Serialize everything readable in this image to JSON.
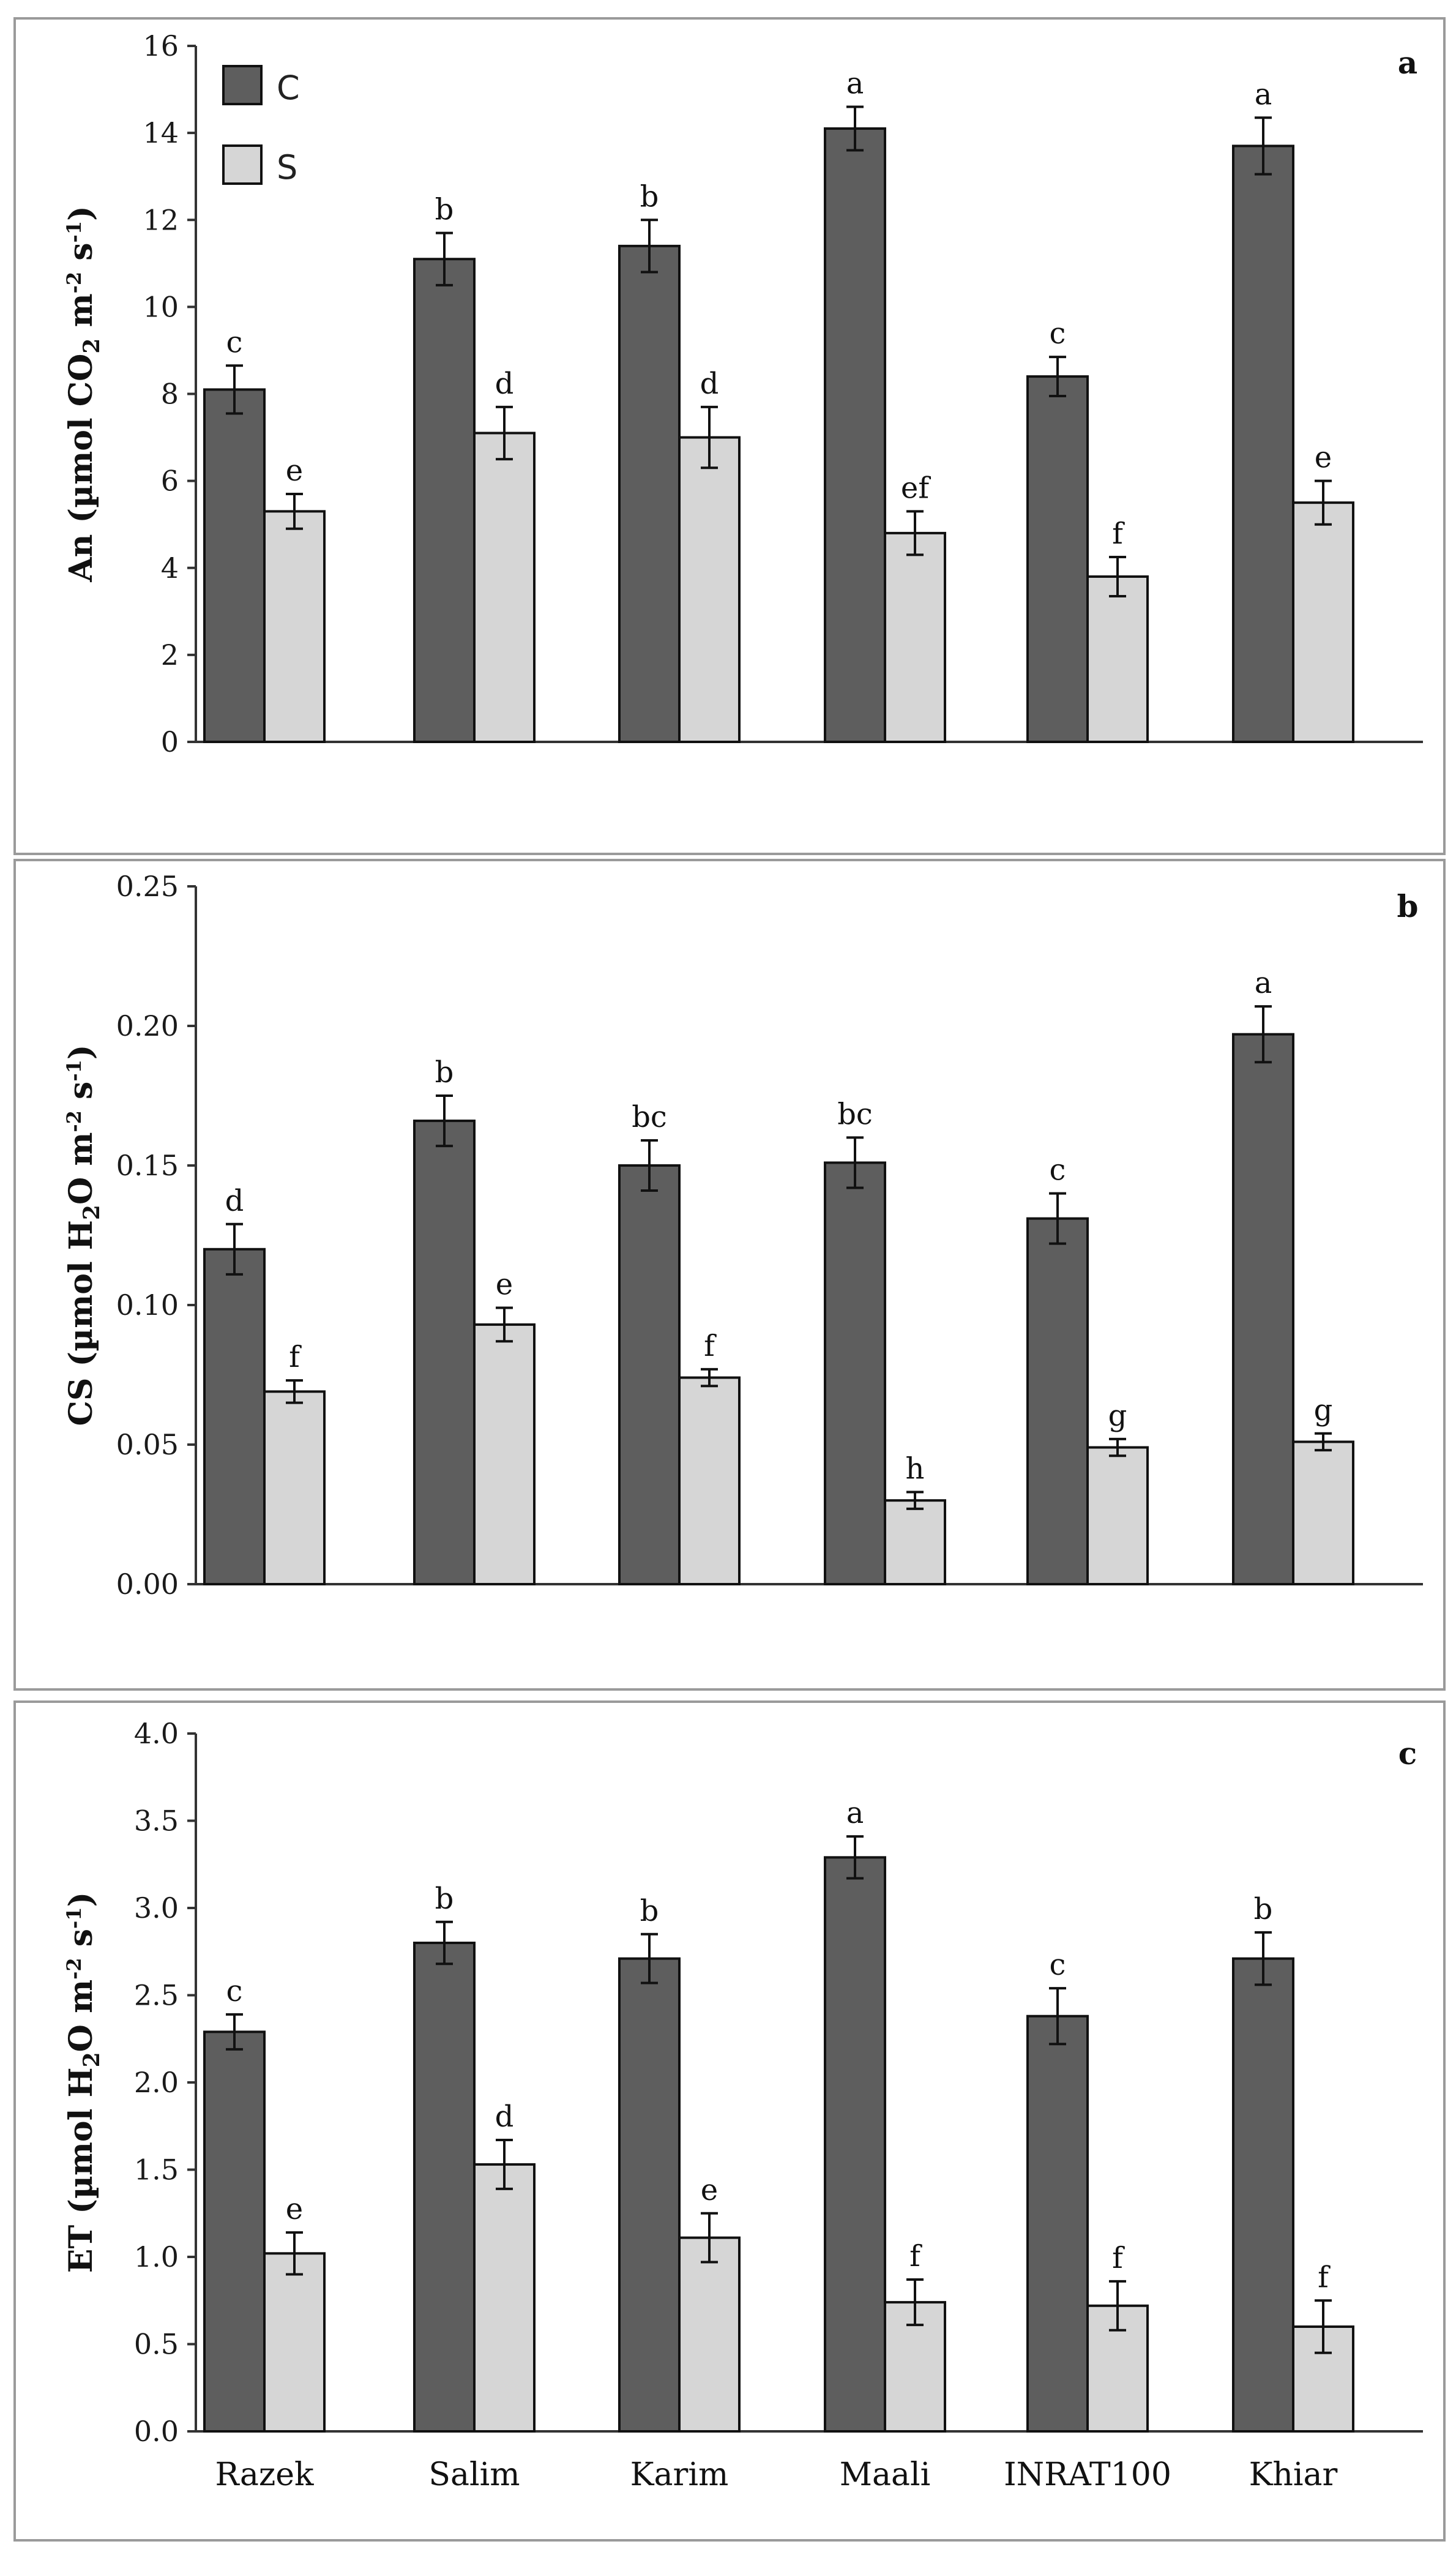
{
  "chart_data": [
    {
      "type": "bar",
      "panel": "a",
      "categories": [
        "Razek",
        "Salim",
        "Karim",
        "Maali",
        "INRAT100",
        "Khiar"
      ],
      "ylabel": "An (µmol CO2 m-2 s-1)",
      "ylabel_parts": [
        "An (µmol CO",
        "2",
        " m",
        "-2",
        " s",
        "-1",
        ")"
      ],
      "ylim": [
        0,
        16
      ],
      "yticks": [
        0,
        2,
        4,
        6,
        8,
        10,
        12,
        14,
        16
      ],
      "ytick_labels": [
        "0",
        "2",
        "4",
        "6",
        "8",
        "10",
        "12",
        "14",
        "16"
      ],
      "series": [
        {
          "name": "C",
          "values": [
            8.1,
            11.1,
            11.4,
            14.1,
            8.4,
            13.7
          ],
          "errors": [
            0.55,
            0.6,
            0.6,
            0.5,
            0.45,
            0.65
          ],
          "letters": [
            "c",
            "b",
            "b",
            "a",
            "c",
            "a"
          ]
        },
        {
          "name": "S",
          "values": [
            5.3,
            7.1,
            7.0,
            4.8,
            3.8,
            5.5
          ],
          "errors": [
            0.4,
            0.6,
            0.7,
            0.5,
            0.45,
            0.5
          ],
          "letters": [
            "e",
            "d",
            "d",
            "ef",
            "f",
            "e"
          ]
        }
      ],
      "legend": [
        {
          "label": "C",
          "color": "#5e5e5e"
        },
        {
          "label": "S",
          "color": "#d6d6d6"
        }
      ]
    },
    {
      "type": "bar",
      "panel": "b",
      "categories": [
        "Razek",
        "Salim",
        "Karim",
        "Maali",
        "INRAT100",
        "Khiar"
      ],
      "ylabel": "CS (µmol H2O m-2 s-1)",
      "ylabel_parts": [
        "CS (µmol H",
        "2",
        "O m",
        "-2",
        " s",
        "-1",
        ")"
      ],
      "ylim": [
        0,
        0.25
      ],
      "yticks": [
        0,
        0.05,
        0.1,
        0.15,
        0.2,
        0.25
      ],
      "ytick_labels": [
        "0.00",
        "0.05",
        "0.10",
        "0.15",
        "0.20",
        "0.25"
      ],
      "series": [
        {
          "name": "C",
          "values": [
            0.12,
            0.166,
            0.15,
            0.151,
            0.131,
            0.197
          ],
          "errors": [
            0.009,
            0.009,
            0.009,
            0.009,
            0.009,
            0.01
          ],
          "letters": [
            "d",
            "b",
            "bc",
            "bc",
            "c",
            "a"
          ]
        },
        {
          "name": "S",
          "values": [
            0.069,
            0.093,
            0.074,
            0.03,
            0.049,
            0.051
          ],
          "errors": [
            0.004,
            0.006,
            0.003,
            0.003,
            0.003,
            0.003
          ],
          "letters": [
            "f",
            "e",
            "f",
            "h",
            "g",
            "g"
          ]
        }
      ]
    },
    {
      "type": "bar",
      "panel": "c",
      "categories": [
        "Razek",
        "Salim",
        "Karim",
        "Maali",
        "INRAT100",
        "Khiar"
      ],
      "ylabel": "ET (µmol H2O m-2 s-1)",
      "ylabel_parts": [
        "ET (µmol H",
        "2",
        "O m",
        "-2",
        " s",
        "-1",
        ")"
      ],
      "ylim": [
        0,
        4.0
      ],
      "yticks": [
        0,
        0.5,
        1.0,
        1.5,
        2.0,
        2.5,
        3.0,
        3.5,
        4.0
      ],
      "ytick_labels": [
        "0.0",
        "0.5",
        "1.0",
        "1.5",
        "2.0",
        "2.5",
        "3.0",
        "3.5",
        "4.0"
      ],
      "series": [
        {
          "name": "C",
          "values": [
            2.29,
            2.8,
            2.71,
            3.29,
            2.38,
            2.71
          ],
          "errors": [
            0.1,
            0.12,
            0.14,
            0.12,
            0.16,
            0.15
          ],
          "letters": [
            "c",
            "b",
            "b",
            "a",
            "c",
            "b"
          ]
        },
        {
          "name": "S",
          "values": [
            1.02,
            1.53,
            1.11,
            0.74,
            0.72,
            0.6
          ],
          "errors": [
            0.12,
            0.14,
            0.14,
            0.13,
            0.14,
            0.15
          ],
          "letters": [
            "e",
            "d",
            "e",
            "f",
            "f",
            "f"
          ]
        }
      ]
    }
  ],
  "colors": {
    "C": "#5e5e5e",
    "S": "#d6d6d6",
    "frame": "#9a9a9a"
  }
}
